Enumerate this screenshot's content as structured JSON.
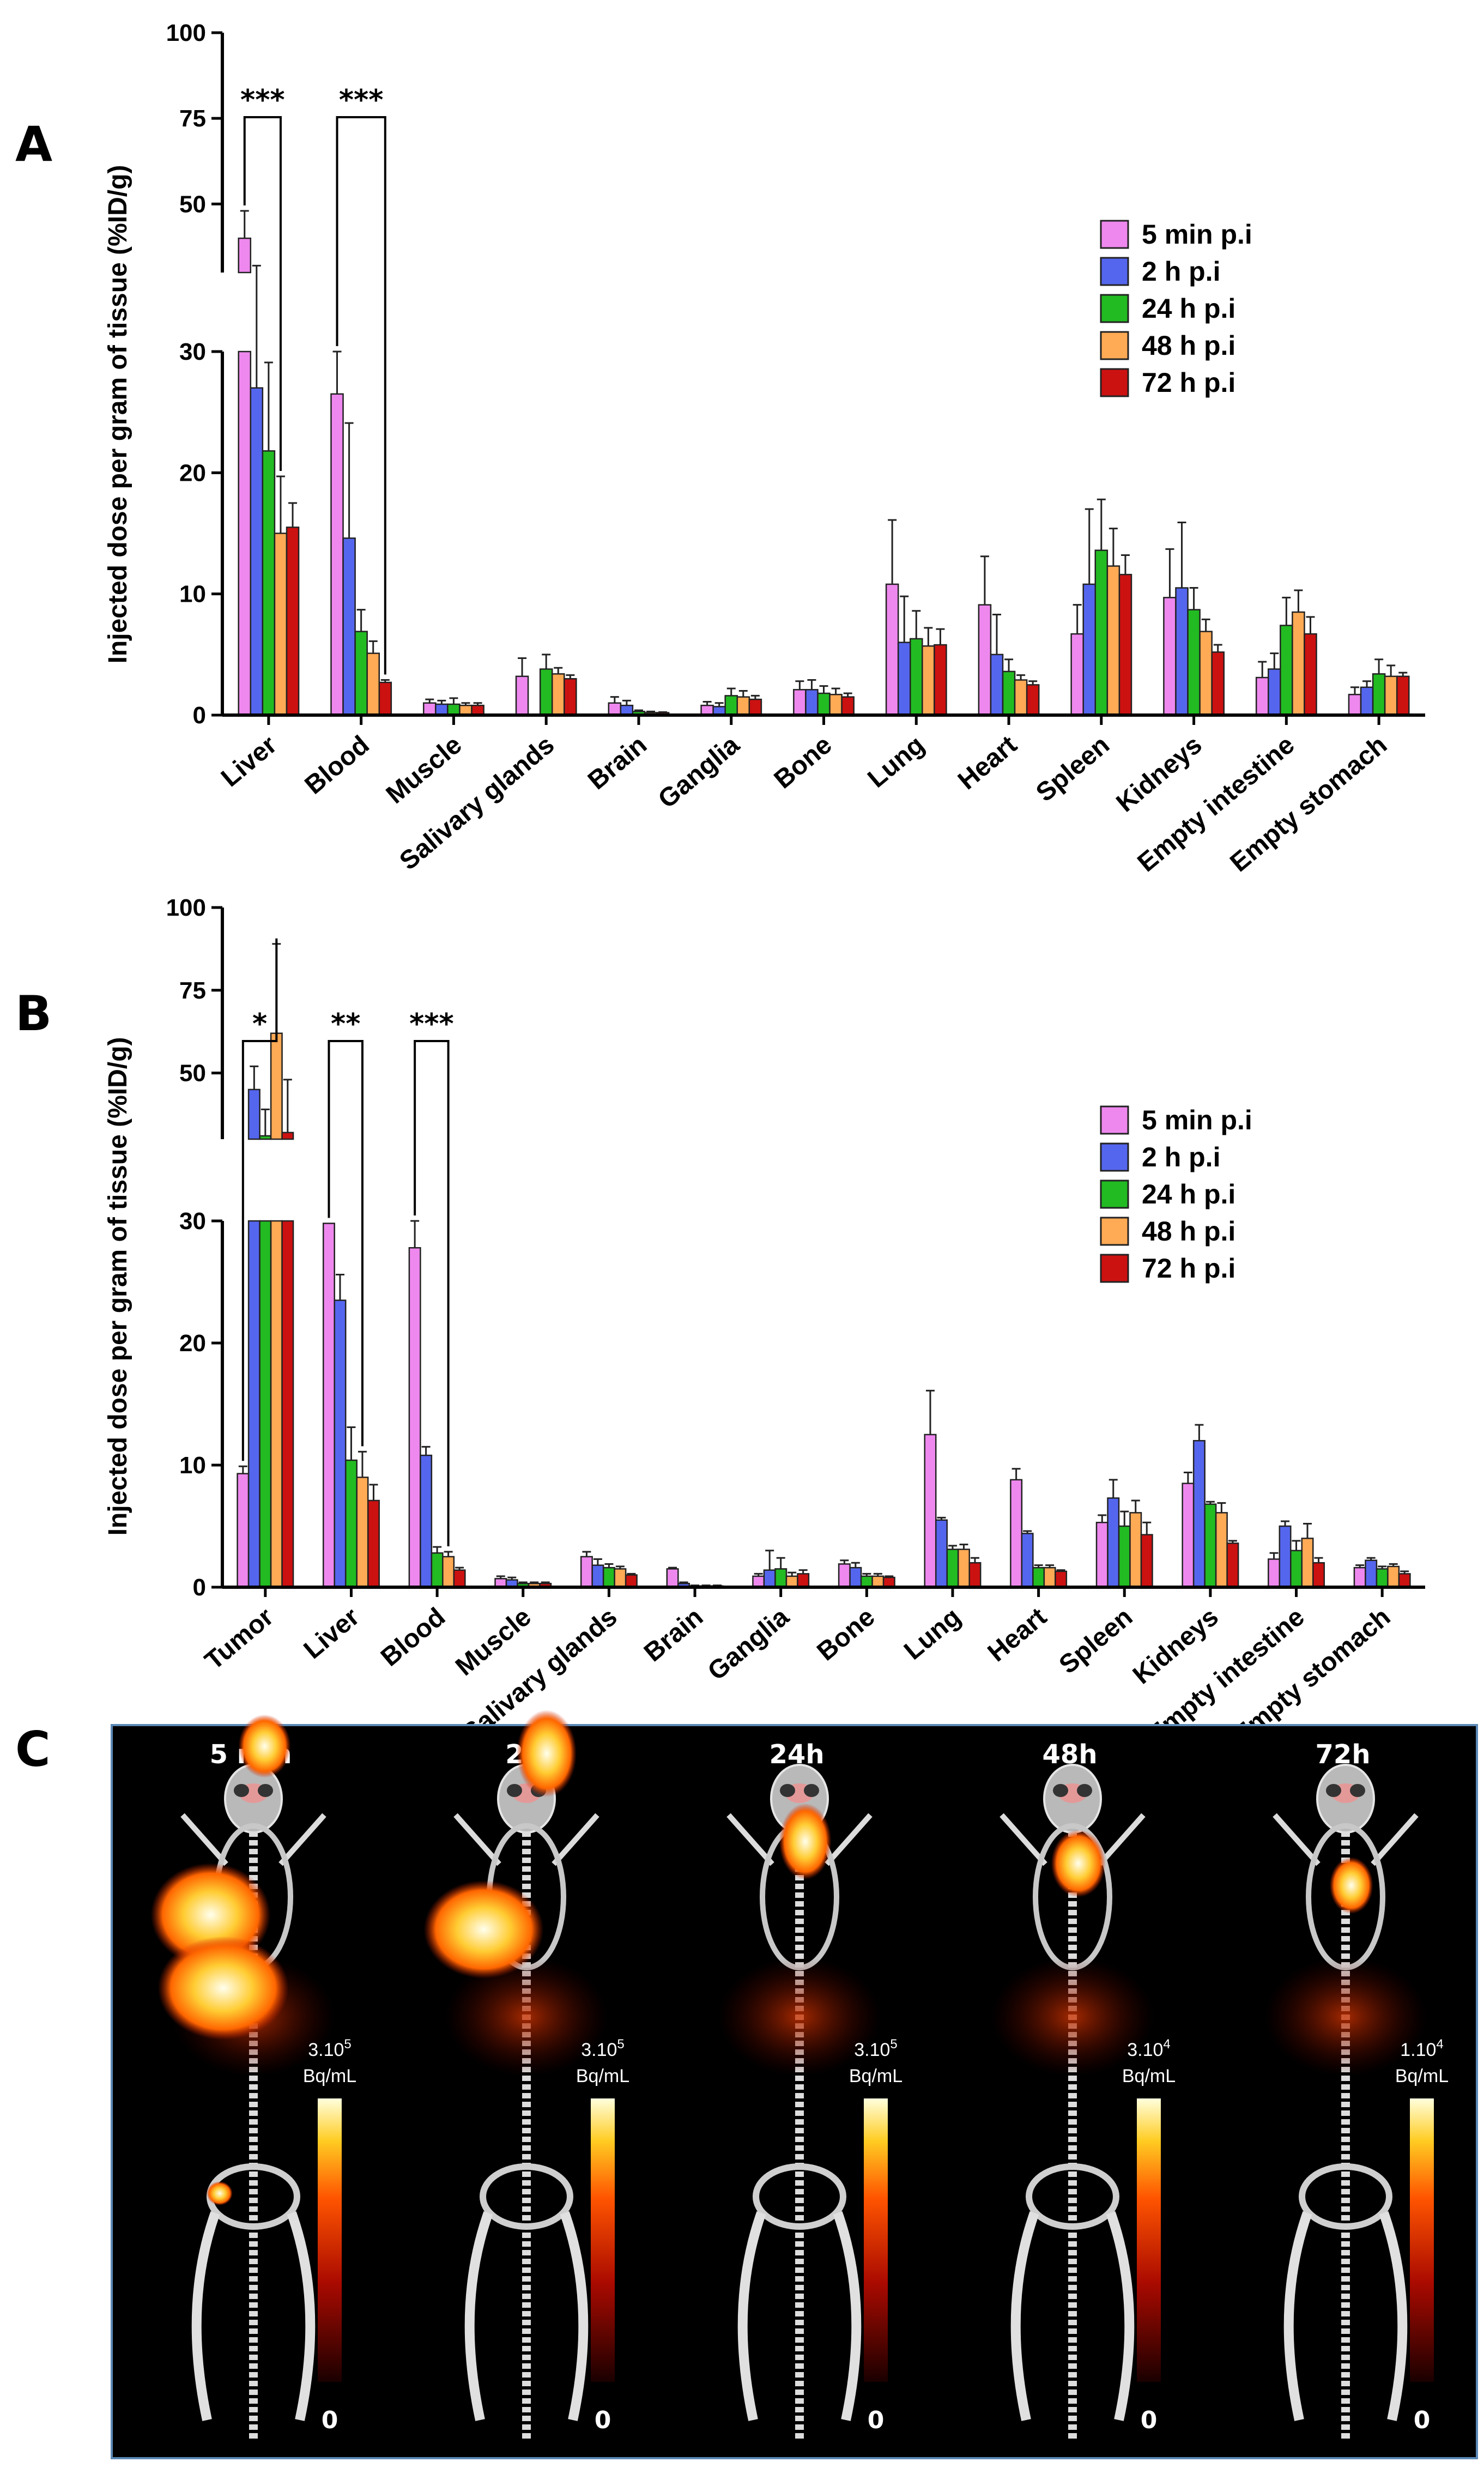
{
  "panels": [
    "A",
    "B",
    "C"
  ],
  "legend": [
    "5 min p.i",
    "2 h p.i",
    "24 h p.i",
    "48 h p.i",
    "72 h p.i"
  ],
  "colors": [
    "#ee88ee",
    "#5566ee",
    "#22bb22",
    "#ffaa55",
    "#cc1111"
  ],
  "chart_data": [
    {
      "type": "bar",
      "panel": "A",
      "ylabel": "Injected dose per gram of tissue (%ID/g)",
      "ylim_lower": [
        0,
        30
      ],
      "ylim_upper": [
        30,
        100
      ],
      "yticks": [
        0,
        10,
        20,
        30,
        50,
        75,
        100
      ],
      "categories": [
        "Liver",
        "Blood",
        "Muscle",
        "Salivary glands",
        "Brain",
        "Ganglia",
        "Bone",
        "Lung",
        "Heart",
        "Spleen",
        "Kidneys",
        "Empty intestine",
        "Empty stomach"
      ],
      "series": [
        {
          "name": "5 min p.i",
          "values": [
            40,
            26.5,
            1.0,
            3.2,
            1.0,
            0.8,
            2.1,
            10.8,
            9.1,
            6.7,
            9.7,
            3.1,
            1.7
          ],
          "errors": [
            8,
            3.5,
            0.3,
            1.5,
            0.5,
            0.3,
            0.7,
            5.3,
            4.0,
            2.4,
            4.0,
            1.3,
            0.6
          ]
        },
        {
          "name": "2 h p.i",
          "values": [
            27,
            14.6,
            0.9,
            0.0,
            0.8,
            0.7,
            2.1,
            6.0,
            5.0,
            10.8,
            10.5,
            3.8,
            2.3
          ],
          "errors": [
            5,
            9.5,
            0.3,
            0,
            0.4,
            0.3,
            0.8,
            3.8,
            3.3,
            6.2,
            5.4,
            1.3,
            0.5
          ]
        },
        {
          "name": "24 h p.i",
          "values": [
            21.8,
            6.9,
            0.9,
            3.8,
            0.3,
            1.6,
            1.8,
            6.3,
            3.6,
            13.6,
            8.7,
            7.4,
            3.4
          ],
          "errors": [
            7.3,
            1.8,
            0.5,
            1.2,
            0.1,
            0.6,
            0.6,
            2.3,
            1.0,
            4.2,
            1.8,
            2.3,
            1.2
          ]
        },
        {
          "name": "48 h p.i",
          "values": [
            15.0,
            5.1,
            0.8,
            3.4,
            0.2,
            1.5,
            1.7,
            5.7,
            2.9,
            12.3,
            6.9,
            8.5,
            3.2
          ],
          "errors": [
            4.7,
            1.0,
            0.2,
            0.5,
            0.1,
            0.5,
            0.5,
            1.5,
            0.4,
            3.1,
            1.0,
            1.8,
            0.9
          ]
        },
        {
          "name": "72 h p.i",
          "values": [
            15.5,
            2.7,
            0.8,
            3.0,
            0.2,
            1.3,
            1.5,
            5.8,
            2.5,
            11.6,
            5.2,
            6.7,
            3.2
          ],
          "errors": [
            2.0,
            0.2,
            0.2,
            0.3,
            0.05,
            0.3,
            0.3,
            1.3,
            0.3,
            1.6,
            0.6,
            1.4,
            0.3
          ]
        }
      ],
      "significance": [
        {
          "label": "***",
          "from": [
            0,
            0
          ],
          "to": [
            0,
            3
          ]
        },
        {
          "label": "***",
          "from": [
            1,
            0
          ],
          "to": [
            1,
            4
          ]
        }
      ]
    },
    {
      "type": "bar",
      "panel": "B",
      "ylabel": "Injected dose per gram of tissue (%ID/g)",
      "ylim_lower": [
        0,
        30
      ],
      "ylim_upper": [
        30,
        100
      ],
      "yticks": [
        0,
        10,
        20,
        30,
        50,
        75,
        100
      ],
      "categories": [
        "Tumor",
        "Liver",
        "Blood",
        "Muscle",
        "Salivary glands",
        "Brain",
        "Ganglia",
        "Bone",
        "Lung",
        "Heart",
        "Spleen",
        "Kidneys",
        "Empty intestine",
        "Empty stomach"
      ],
      "series": [
        {
          "name": "5 min p.i",
          "values": [
            9.3,
            29.8,
            27.8,
            0.7,
            2.5,
            1.5,
            0.9,
            1.9,
            12.5,
            8.8,
            5.3,
            8.5,
            2.3,
            1.6
          ],
          "errors": [
            0.6,
            0,
            2.2,
            0.2,
            0.4,
            0.1,
            0.2,
            0.3,
            3.6,
            0.9,
            0.6,
            0.9,
            0.5,
            0.2
          ]
        },
        {
          "name": "2 h p.i",
          "values": [
            45,
            23.5,
            10.8,
            0.6,
            1.8,
            0.3,
            1.4,
            1.6,
            5.5,
            4.4,
            7.3,
            12.0,
            5.0,
            2.2
          ],
          "errors": [
            7,
            2.1,
            0.7,
            0.2,
            0.5,
            0.1,
            1.6,
            0.4,
            0.2,
            0.2,
            1.5,
            1.3,
            0.4,
            0.2
          ]
        },
        {
          "name": "24 h p.i",
          "values": [
            31,
            10.4,
            2.8,
            0.3,
            1.6,
            0.1,
            1.5,
            0.9,
            3.1,
            1.6,
            5.0,
            6.8,
            3.0,
            1.5
          ],
          "errors": [
            8,
            2.7,
            0.5,
            0.1,
            0.3,
            0.05,
            0.9,
            0.2,
            0.3,
            0.2,
            1.2,
            0.2,
            0.8,
            0.2
          ]
        },
        {
          "name": "48 h p.i",
          "values": [
            62,
            9.0,
            2.5,
            0.3,
            1.5,
            0.1,
            0.9,
            0.9,
            3.1,
            1.6,
            6.1,
            6.1,
            4.0,
            1.7
          ],
          "errors": [
            27,
            2.1,
            0.4,
            0.1,
            0.2,
            0.05,
            0.3,
            0.2,
            0.4,
            0.2,
            1.0,
            0.8,
            1.2,
            0.2
          ]
        },
        {
          "name": "72 h p.i",
          "values": [
            32,
            7.1,
            1.4,
            0.3,
            1.0,
            0.1,
            1.1,
            0.8,
            2.0,
            1.3,
            4.3,
            3.6,
            2.0,
            1.1
          ],
          "errors": [
            16,
            1.3,
            0.2,
            0.1,
            0.1,
            0.05,
            0.3,
            0.1,
            0.4,
            0.1,
            1.0,
            0.2,
            0.4,
            0.2
          ]
        }
      ],
      "significance": [
        {
          "label": "*",
          "from": [
            0,
            0
          ],
          "to": [
            0,
            3
          ]
        },
        {
          "label": "**",
          "from": [
            1,
            0
          ],
          "to": [
            1,
            3
          ]
        },
        {
          "label": "***",
          "from": [
            2,
            0
          ],
          "to": [
            2,
            3
          ]
        }
      ]
    }
  ],
  "imaging": {
    "time_points": [
      "5 min",
      "2h",
      "24h",
      "48h",
      "72h"
    ],
    "scale_max": [
      {
        "value": "3.10",
        "exp": "5",
        "unit": "Bq/mL"
      },
      {
        "value": "3.10",
        "exp": "5",
        "unit": "Bq/mL"
      },
      {
        "value": "3.10",
        "exp": "5",
        "unit": "Bq/mL"
      },
      {
        "value": "3.10",
        "exp": "4",
        "unit": "Bq/mL"
      },
      {
        "value": "1.10",
        "exp": "4",
        "unit": "Bq/mL"
      }
    ],
    "scale_min": "0"
  }
}
